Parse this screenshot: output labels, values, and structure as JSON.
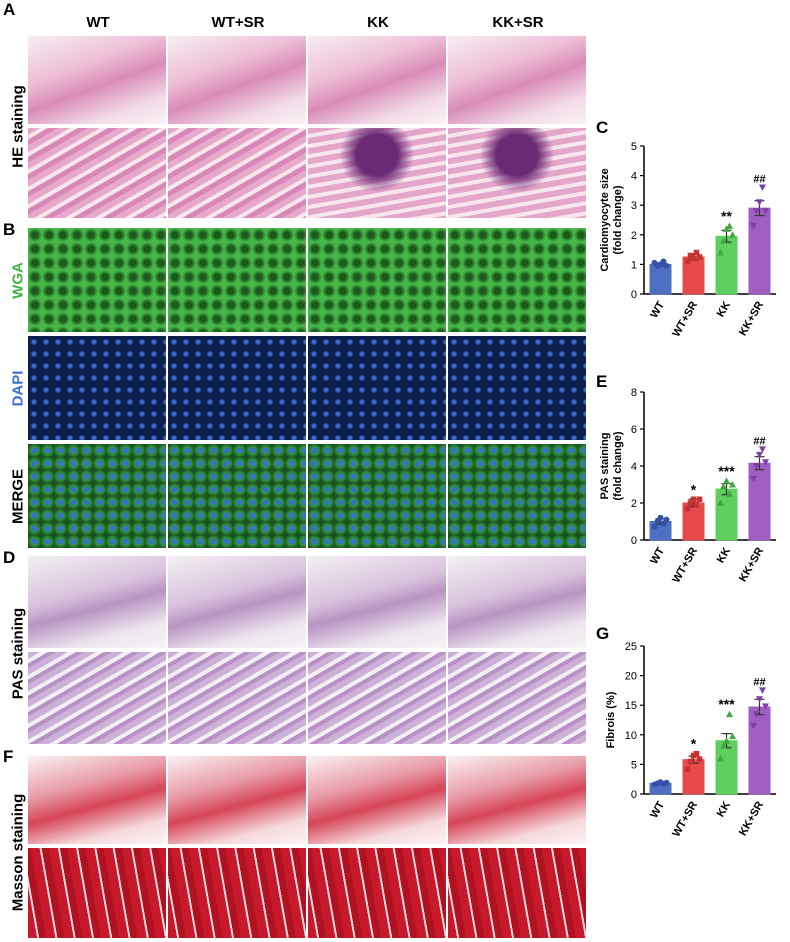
{
  "panels": {
    "A": "A",
    "B": "B",
    "C": "C",
    "D": "D",
    "E": "E",
    "F": "F",
    "G": "G"
  },
  "columns": [
    "WT",
    "WT+SR",
    "KK",
    "KK+SR"
  ],
  "row_labels": {
    "he": "HE staining",
    "wga": "WGA",
    "dapi": "DAPI",
    "merge": "MERGE",
    "pas": "PAS staining",
    "masson": "Masson staining"
  },
  "colors": {
    "WT": "#4f6fc2",
    "WT+SR": "#e84a4a",
    "KK": "#5fcf5f",
    "KK+SR": "#a05ec2",
    "wga_label": "#3fb33f",
    "dapi_label": "#3d6fd1"
  },
  "chart_data": [
    {
      "panel": "C",
      "type": "bar",
      "categories": [
        "WT",
        "WT+SR",
        "KK",
        "KK+SR"
      ],
      "values": [
        1.0,
        1.25,
        1.95,
        2.9
      ],
      "errors": [
        0.05,
        0.1,
        0.2,
        0.25
      ],
      "points": [
        [
          1.05,
          0.95,
          1.0,
          1.1,
          0.95
        ],
        [
          1.1,
          1.3,
          1.2,
          1.4,
          1.25
        ],
        [
          1.4,
          1.8,
          2.2,
          2.3,
          2.0
        ],
        [
          2.3,
          2.8,
          3.1,
          3.6,
          2.8
        ]
      ],
      "annotations": [
        "",
        "",
        "**",
        "##"
      ],
      "ylabel": "Cardiomyocyte size\n(fold change)",
      "ylim": [
        0,
        5
      ],
      "yticks": [
        0,
        1,
        2,
        3,
        4,
        5
      ]
    },
    {
      "panel": "E",
      "type": "bar",
      "categories": [
        "WT",
        "WT+SR",
        "KK",
        "KK+SR"
      ],
      "values": [
        1.0,
        2.0,
        2.75,
        4.15
      ],
      "errors": [
        0.15,
        0.2,
        0.3,
        0.35
      ],
      "points": [
        [
          0.7,
          1.0,
          1.2,
          0.9,
          1.1
        ],
        [
          1.7,
          2.0,
          2.2,
          1.9,
          2.2
        ],
        [
          2.0,
          2.9,
          3.2,
          2.5,
          3.0
        ],
        [
          3.3,
          4.0,
          4.6,
          4.9,
          4.2
        ]
      ],
      "annotations": [
        "",
        "*",
        "***",
        "##"
      ],
      "ylabel": "PAS staining\n(fold change)",
      "ylim": [
        0,
        8
      ],
      "yticks": [
        0,
        2,
        4,
        6,
        8
      ]
    },
    {
      "panel": "G",
      "type": "bar",
      "categories": [
        "WT",
        "WT+SR",
        "KK",
        "KK+SR"
      ],
      "values": [
        1.8,
        5.8,
        9.0,
        14.7
      ],
      "errors": [
        0.2,
        0.6,
        1.2,
        1.3
      ],
      "points": [
        [
          1.6,
          1.8,
          2.0,
          1.7,
          1.9
        ],
        [
          4.2,
          5.5,
          6.5,
          6.8,
          5.9
        ],
        [
          6.0,
          8.2,
          9.0,
          13.5,
          9.8
        ],
        [
          11.5,
          13.5,
          16.0,
          17.5,
          14.8
        ]
      ],
      "annotations": [
        "",
        "*",
        "***",
        "##"
      ],
      "ylabel": "Fibrois (%)",
      "ylim": [
        0,
        25
      ],
      "yticks": [
        0,
        5,
        10,
        15,
        20,
        25
      ]
    }
  ]
}
